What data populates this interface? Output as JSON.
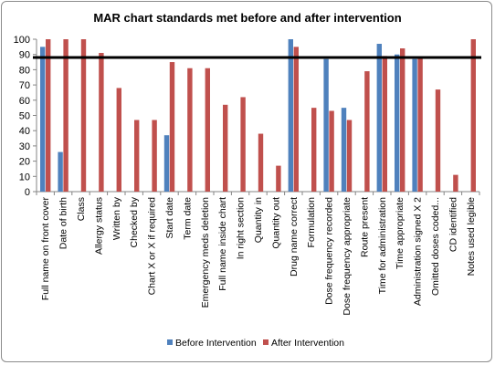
{
  "chart_data": {
    "type": "bar",
    "title": "MAR chart standards met before and after intervention",
    "xlabel": "",
    "ylabel": "",
    "ylim": [
      0,
      100
    ],
    "yticks": [
      0,
      10,
      20,
      30,
      40,
      50,
      60,
      70,
      80,
      90,
      100
    ],
    "grid": false,
    "legend_position": "bottom",
    "reference_line": 88,
    "categories": [
      "Full name on front cover",
      "Date of birth",
      "Class",
      "Allergy status",
      "Written by",
      "Checked by",
      "Chart X or X if required",
      "Start date",
      "Term date",
      "Emergency meds deletion",
      "Full name inside chart",
      "In right section",
      "Quantity in",
      "Quantity out",
      "Drug name correct",
      "Formulation",
      "Dose frequency recorded",
      "Dose frequency appropriate",
      "Route present",
      "Time for administration",
      "Time appropriate",
      "Administration signed X 2",
      "Omitted doses coded...",
      "CD identified",
      "Notes used legible"
    ],
    "series": [
      {
        "name": "Before Intervention",
        "color": "#4F81BD",
        "values": [
          95,
          26,
          0,
          0,
          0,
          0,
          0,
          37,
          0,
          0,
          0,
          0,
          0,
          0,
          100,
          0,
          87,
          55,
          0,
          97,
          90,
          87,
          0,
          0,
          0
        ]
      },
      {
        "name": "After Intervention",
        "color": "#C0504D",
        "values": [
          100,
          100,
          100,
          91,
          68,
          47,
          47,
          85,
          81,
          81,
          57,
          62,
          38,
          17,
          95,
          55,
          53,
          47,
          79,
          89,
          94,
          88,
          67,
          11,
          100
        ]
      }
    ]
  }
}
